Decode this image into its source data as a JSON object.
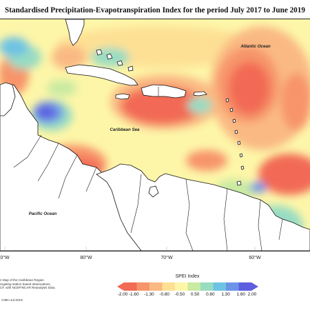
{
  "title": "Standardised Precipitation-Evapotranspiration Index for the period July 2017 to June 2019",
  "labels": {
    "atlantic": "Atlantic Ocean",
    "caribbean": "Caribbean Sea",
    "pacific": "Pacific Ocean"
  },
  "longitudes": [
    "0°W",
    "80°W",
    "70°W",
    "60°W"
  ],
  "credits": [
    "n Map of the Caribbean Region",
    "regating station based observations,",
    "CF, with NCEP/NCAR Reanalysis Data."
  ],
  "crh": "CIMH Jul-2019",
  "legend": {
    "title": "SPEI Index",
    "ticks": [
      "-2.00",
      "-1.60",
      "-1.30",
      "-0.80",
      "-0.50",
      "0.50",
      "0.80",
      "1.30",
      "1.60",
      "2.00"
    ],
    "colors": [
      "#f26b55",
      "#f7946b",
      "#fab983",
      "#fde094",
      "#fdf6a8",
      "#c9eaa2",
      "#98dcc2",
      "#6ec3e3",
      "#6d93e8",
      "#5d5fe0"
    ]
  },
  "colors": {
    "land": "#ffffff",
    "coast": "#111111",
    "very_dry": "#f26b55",
    "dry": "#f7946b",
    "moderate_dry": "#fab983",
    "slightly_dry": "#fde094",
    "normal": "#fdf6a8",
    "slightly_wet": "#c9eaa2",
    "wet": "#98dcc2",
    "very_wet": "#6ec3e3",
    "extremely_wet": "#5d5fe0"
  }
}
